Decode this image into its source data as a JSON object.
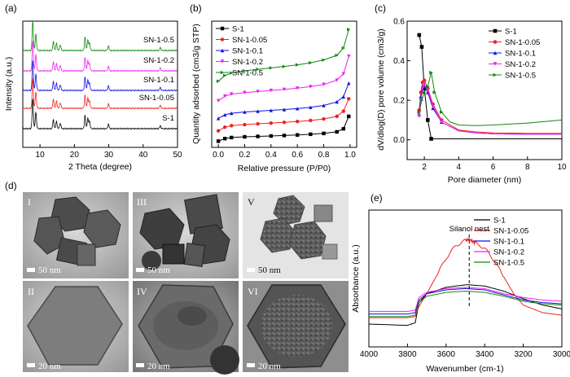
{
  "panels": {
    "a": {
      "label": "(a)"
    },
    "b": {
      "label": "(b)"
    },
    "c": {
      "label": "(c)"
    },
    "d": {
      "label": "(d)"
    },
    "e": {
      "label": "(e)"
    }
  },
  "tem": {
    "tiles": [
      {
        "roman": "I",
        "scale": "50 nm"
      },
      {
        "roman": "III",
        "scale": "50 nm"
      },
      {
        "roman": "V",
        "scale": "50 nm"
      },
      {
        "roman": "II",
        "scale": "20 nm"
      },
      {
        "roman": "IV",
        "scale": "20 nm"
      },
      {
        "roman": "VI",
        "scale": "20 nm"
      }
    ]
  },
  "colors": {
    "S-1": "#000000",
    "SN-1-0.05": "#ee2222",
    "SN-1-0.1": "#1111dd",
    "SN-1-0.2": "#ee22ee",
    "SN-1-0.5": "#118811"
  },
  "chart_data": [
    {
      "id": "a",
      "type": "line",
      "xlabel": "2 Theta (degree)",
      "ylabel": "Intensity (a.u.)",
      "xlim": [
        5,
        50
      ],
      "xticks": [
        10,
        20,
        30,
        40,
        50
      ],
      "series_order_top_to_bottom": [
        "SN-1-0.5",
        "SN-1-0.2",
        "SN-1-0.1",
        "SN-1-0.05",
        "S-1"
      ],
      "peaks_2theta": [
        7.9,
        8.8,
        13.9,
        14.8,
        15.9,
        23.1,
        23.9,
        24.4,
        29.9,
        45.0
      ],
      "series": [
        {
          "name": "S-1"
        },
        {
          "name": "SN-1-0.05"
        },
        {
          "name": "SN-1-0.1"
        },
        {
          "name": "SN-1-0.2"
        },
        {
          "name": "SN-1-0.5"
        }
      ]
    },
    {
      "id": "b",
      "type": "line",
      "xlabel": "Relative pressure (P/P0)",
      "ylabel": "Quantity adsorbed (cm3/g STP)",
      "xlim": [
        -0.05,
        1.05
      ],
      "xticks": [
        "0.0",
        "0.2",
        "0.4",
        "0.6",
        "0.8",
        "1.0"
      ],
      "legend_position": "top-left",
      "series": [
        {
          "name": "S-1",
          "x": [
            0.0,
            0.05,
            0.1,
            0.2,
            0.3,
            0.4,
            0.5,
            0.6,
            0.7,
            0.8,
            0.9,
            0.95,
            0.99
          ],
          "values": [
            0.0,
            0.25,
            0.35,
            0.42,
            0.46,
            0.5,
            0.55,
            0.6,
            0.67,
            0.75,
            0.9,
            1.2,
            2.4
          ]
        },
        {
          "name": "SN-1-0.05",
          "x": [
            0.0,
            0.05,
            0.1,
            0.2,
            0.3,
            0.4,
            0.5,
            0.6,
            0.7,
            0.8,
            0.9,
            0.95,
            0.99
          ],
          "values": [
            1.0,
            1.35,
            1.5,
            1.6,
            1.68,
            1.75,
            1.82,
            1.9,
            2.0,
            2.15,
            2.4,
            2.9,
            4.1
          ]
        },
        {
          "name": "SN-1-0.1",
          "x": [
            0.0,
            0.05,
            0.1,
            0.2,
            0.3,
            0.4,
            0.5,
            0.6,
            0.7,
            0.8,
            0.9,
            0.95,
            0.99
          ],
          "values": [
            2.2,
            2.55,
            2.7,
            2.82,
            2.9,
            2.98,
            3.06,
            3.15,
            3.27,
            3.45,
            3.8,
            4.3,
            5.6
          ]
        },
        {
          "name": "SN-1-0.2",
          "x": [
            0.0,
            0.05,
            0.1,
            0.2,
            0.3,
            0.4,
            0.5,
            0.6,
            0.7,
            0.8,
            0.9,
            0.95,
            0.99
          ],
          "values": [
            3.9,
            4.35,
            4.55,
            4.7,
            4.8,
            4.9,
            5.0,
            5.12,
            5.27,
            5.48,
            5.9,
            6.5,
            8.2
          ]
        },
        {
          "name": "SN-1-0.5",
          "x": [
            0.0,
            0.05,
            0.1,
            0.2,
            0.3,
            0.4,
            0.5,
            0.6,
            0.7,
            0.8,
            0.9,
            0.95,
            0.99
          ],
          "values": [
            5.8,
            6.35,
            6.6,
            6.8,
            6.95,
            7.08,
            7.22,
            7.38,
            7.58,
            7.85,
            8.3,
            9.0,
            10.8
          ]
        }
      ]
    },
    {
      "id": "c",
      "type": "line",
      "xlabel": "Pore diameter (nm)",
      "ylabel": "dV/dlog(D) pore volume (cm3/g)",
      "xlim": [
        1,
        10
      ],
      "ylim": [
        -0.1,
        0.6
      ],
      "xticks": [
        2,
        4,
        6,
        8,
        10
      ],
      "yticks": [
        "0.0",
        "0.2",
        "0.4",
        "0.6"
      ],
      "legend_position": "top-right",
      "series": [
        {
          "name": "S-1",
          "x": [
            1.7,
            1.85,
            2.0,
            2.2,
            2.4,
            10
          ],
          "values": [
            0.53,
            0.47,
            0.26,
            0.1,
            0.005,
            0.005
          ]
        },
        {
          "name": "SN-1-0.05",
          "x": [
            1.7,
            1.8,
            1.9,
            2.0,
            2.2,
            2.5,
            3,
            4,
            5,
            6,
            8,
            10
          ],
          "values": [
            0.15,
            0.24,
            0.29,
            0.3,
            0.26,
            0.18,
            0.1,
            0.05,
            0.04,
            0.035,
            0.033,
            0.033
          ]
        },
        {
          "name": "SN-1-0.1",
          "x": [
            1.7,
            1.8,
            1.9,
            2.0,
            2.2,
            2.5,
            3,
            4,
            5,
            6,
            8,
            10
          ],
          "values": [
            0.13,
            0.22,
            0.27,
            0.27,
            0.24,
            0.16,
            0.09,
            0.045,
            0.035,
            0.03,
            0.028,
            0.028
          ]
        },
        {
          "name": "SN-1-0.2",
          "x": [
            1.7,
            1.8,
            1.9,
            2.0,
            2.2,
            2.5,
            3,
            4,
            5,
            6,
            8,
            10
          ],
          "values": [
            0.12,
            0.2,
            0.26,
            0.28,
            0.25,
            0.17,
            0.09,
            0.045,
            0.035,
            0.03,
            0.028,
            0.028
          ]
        },
        {
          "name": "SN-1-0.5",
          "x": [
            1.7,
            1.85,
            2.0,
            2.2,
            2.4,
            2.6,
            3.0,
            3.5,
            4,
            5,
            6,
            8,
            10
          ],
          "values": [
            0.14,
            0.2,
            0.24,
            0.27,
            0.34,
            0.24,
            0.14,
            0.09,
            0.075,
            0.072,
            0.075,
            0.085,
            0.1
          ]
        }
      ]
    },
    {
      "id": "e",
      "type": "line",
      "xlabel": "Wavenumber (cm-1)",
      "ylabel": "Absorbance (a.u.)",
      "xlim": [
        4000,
        3000
      ],
      "xticks": [
        4000,
        3800,
        3600,
        3400,
        3200,
        3000
      ],
      "annotation": "Silanol nest",
      "annotation_x": 3480,
      "legend_position": "top-right",
      "series": [
        {
          "name": "S-1",
          "x": [
            4000,
            3800,
            3760,
            3740,
            3700,
            3600,
            3500,
            3480,
            3400,
            3300,
            3200,
            3100,
            3000
          ],
          "values": [
            0.18,
            0.17,
            0.19,
            0.35,
            0.42,
            0.47,
            0.49,
            0.49,
            0.48,
            0.44,
            0.38,
            0.33,
            0.3
          ]
        },
        {
          "name": "SN-1-0.05",
          "x": [
            4000,
            3800,
            3760,
            3740,
            3700,
            3650,
            3600,
            3550,
            3500,
            3480,
            3450,
            3400,
            3350,
            3300,
            3250,
            3200,
            3100,
            3000
          ],
          "values": [
            0.23,
            0.23,
            0.24,
            0.32,
            0.42,
            0.56,
            0.7,
            0.8,
            0.84,
            0.85,
            0.82,
            0.78,
            0.68,
            0.55,
            0.42,
            0.33,
            0.27,
            0.25
          ]
        },
        {
          "name": "SN-1-0.1",
          "x": [
            4000,
            3800,
            3760,
            3740,
            3700,
            3600,
            3500,
            3400,
            3300,
            3200,
            3100,
            3000
          ],
          "values": [
            0.26,
            0.26,
            0.27,
            0.37,
            0.42,
            0.45,
            0.46,
            0.45,
            0.41,
            0.37,
            0.35,
            0.34
          ]
        },
        {
          "name": "SN-1-0.2",
          "x": [
            4000,
            3800,
            3760,
            3740,
            3700,
            3600,
            3500,
            3400,
            3300,
            3200,
            3100,
            3000
          ],
          "values": [
            0.28,
            0.28,
            0.29,
            0.39,
            0.43,
            0.46,
            0.47,
            0.46,
            0.42,
            0.39,
            0.37,
            0.36
          ]
        },
        {
          "name": "SN-1-0.5",
          "x": [
            4000,
            3800,
            3760,
            3740,
            3700,
            3600,
            3500,
            3400,
            3300,
            3200,
            3100,
            3000
          ],
          "values": [
            0.24,
            0.24,
            0.25,
            0.35,
            0.4,
            0.43,
            0.44,
            0.43,
            0.4,
            0.36,
            0.34,
            0.33
          ]
        }
      ]
    }
  ]
}
